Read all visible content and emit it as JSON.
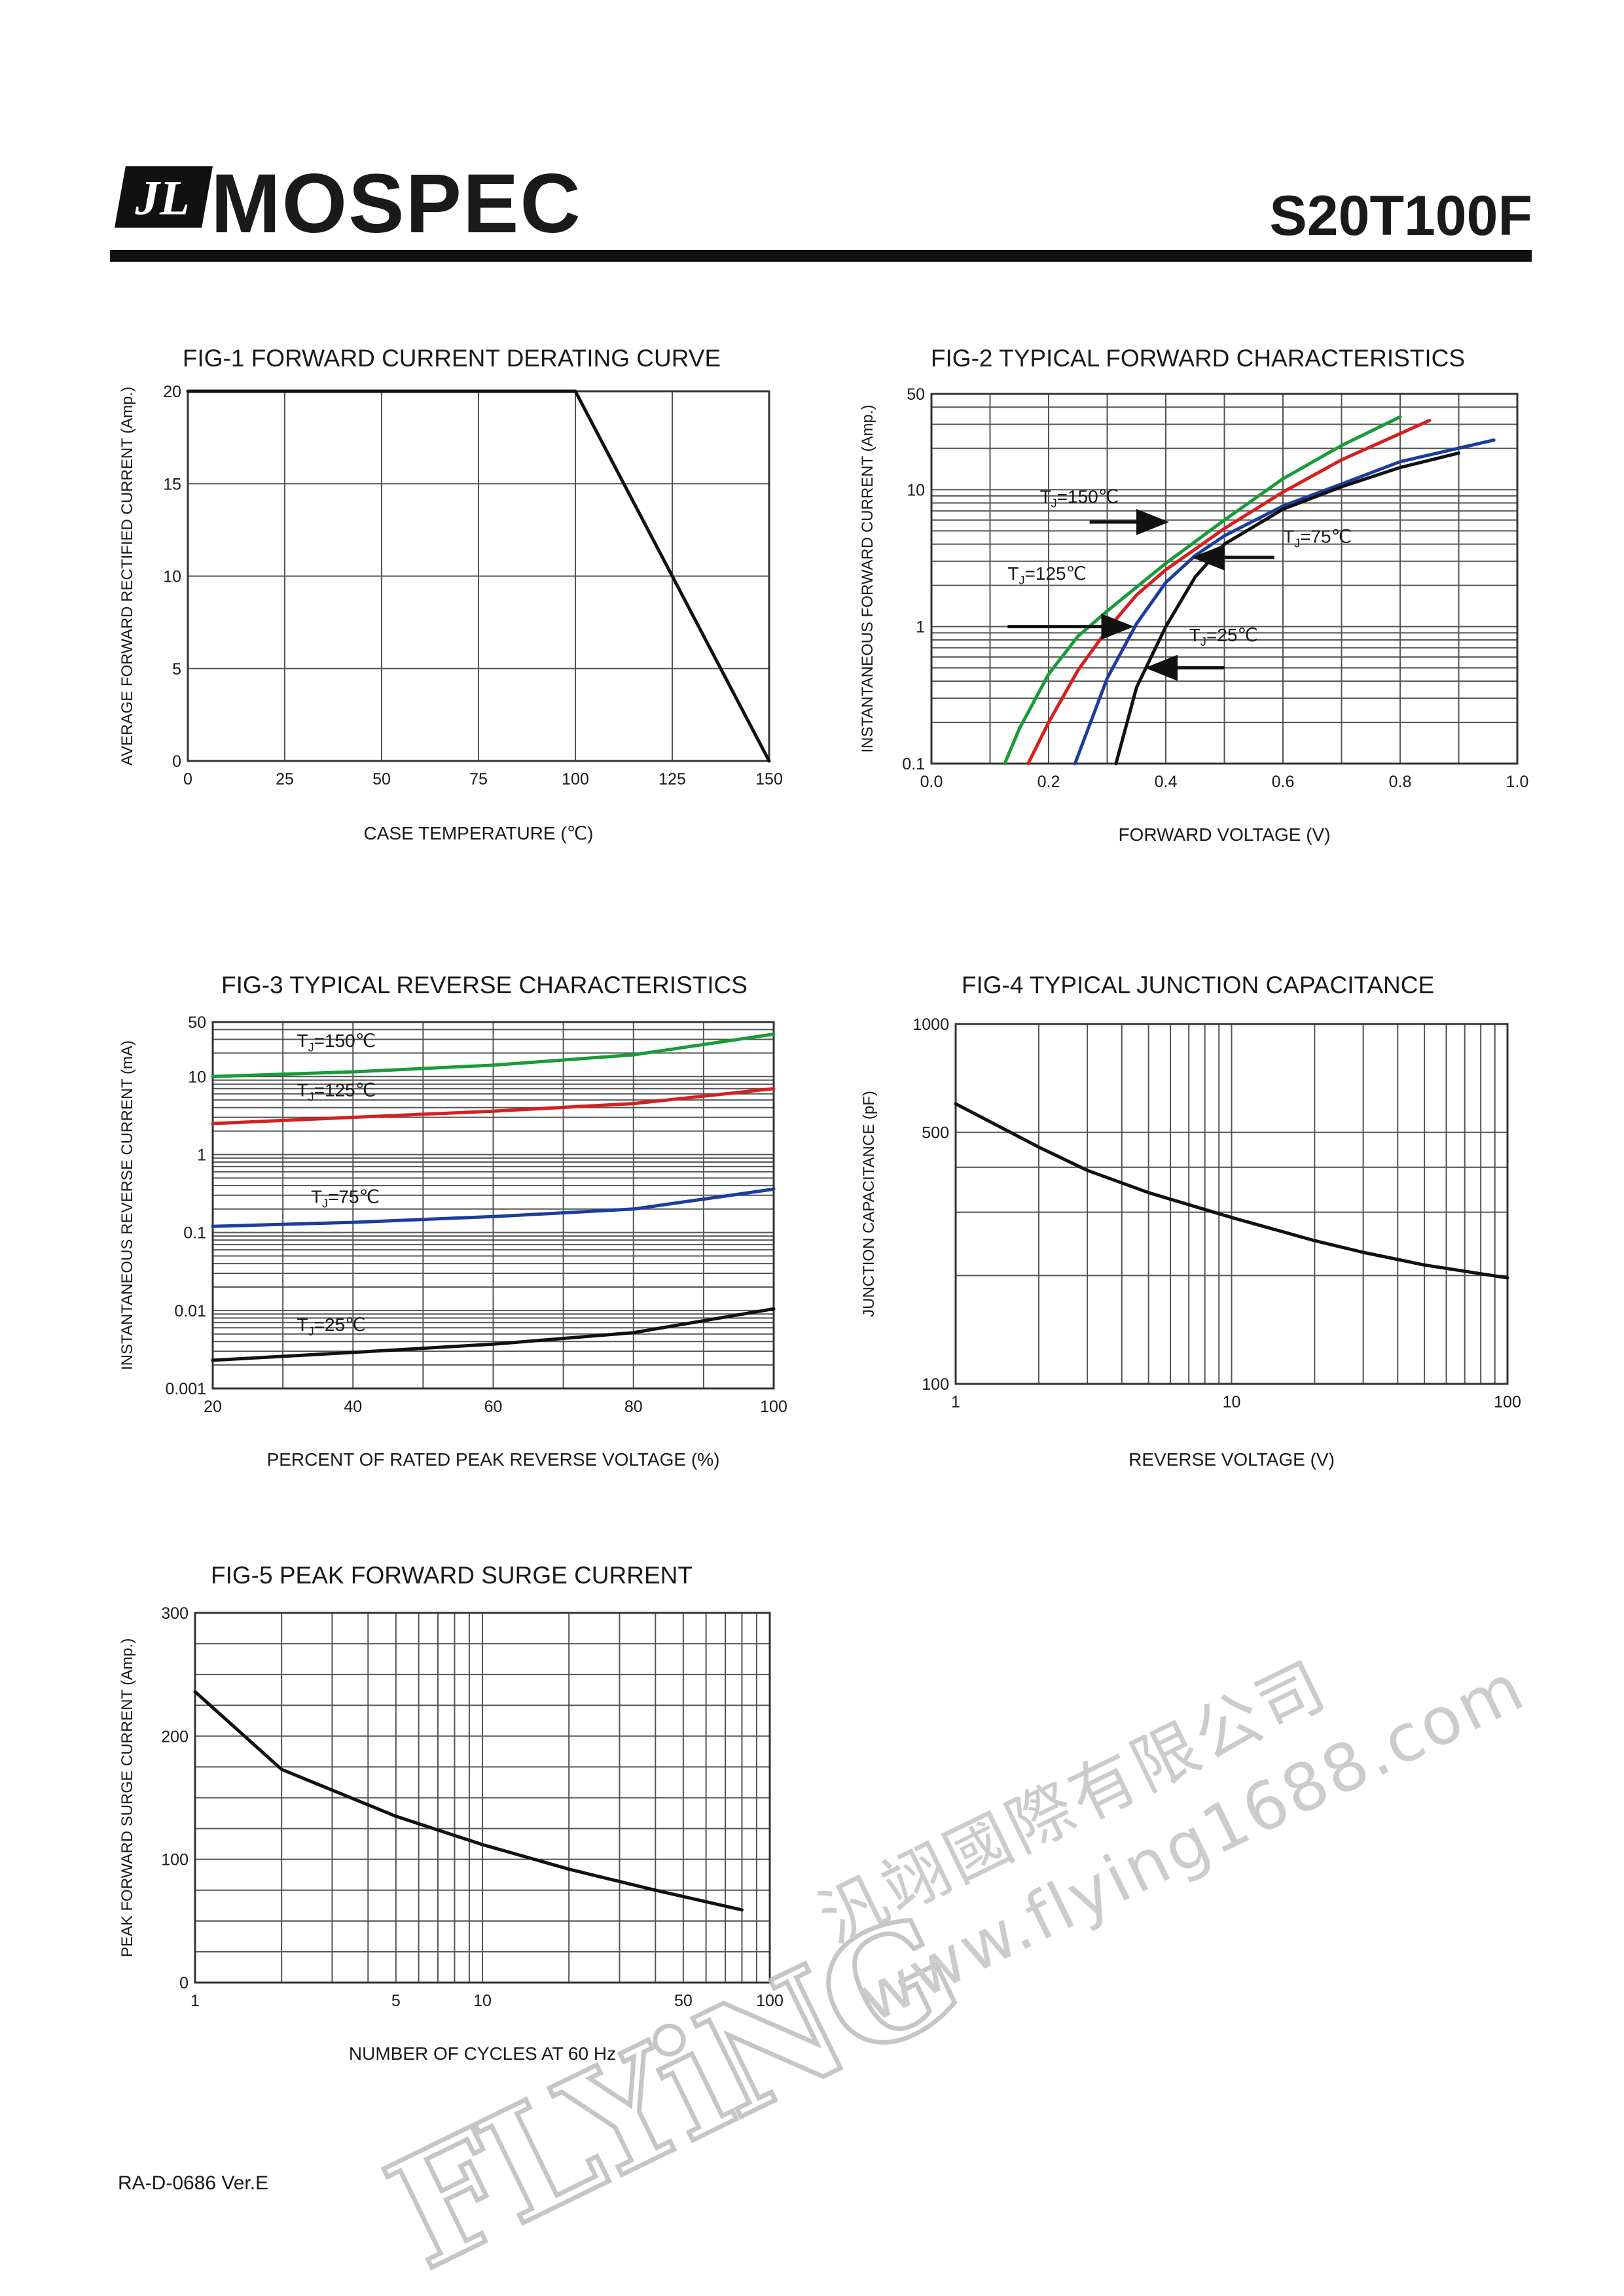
{
  "header": {
    "brand": "MOSPEC",
    "logo_mark": "JL",
    "part_number": "S20T100F"
  },
  "footer": {
    "doc_code": "RA-D-0686 Ver.E"
  },
  "watermark": {
    "brand": "FLYiNG",
    "chinese": "汎翊國際有限公司",
    "url": "www.flying1688.com",
    "color": "#bdbdbd",
    "accent": "#8cc63f"
  },
  "colors": {
    "green": "#1a9a3a",
    "red": "#d42020",
    "blue": "#1c3d9c",
    "black": "#111111",
    "grid": "#555555"
  },
  "chart_data": [
    {
      "id": "fig1",
      "type": "line",
      "title": "FIG-1 FORWARD CURRENT DERATING CURVE",
      "xlabel": "CASE TEMPERATURE (℃)",
      "ylabel": "AVERAGE FORWARD RECTIFIED CURRENT (Amp.)",
      "xscale": "linear",
      "yscale": "linear",
      "xlim": [
        0,
        150
      ],
      "ylim": [
        0,
        20
      ],
      "xticks": [
        0,
        25,
        50,
        75,
        100,
        125,
        150
      ],
      "xticklabels": [
        "0",
        "25",
        "50",
        "75",
        "100",
        "125",
        "150"
      ],
      "yticks": [
        0,
        5,
        10,
        15,
        20
      ],
      "yticklabels": [
        "0",
        "5",
        "10",
        "15",
        "20"
      ],
      "xgrid": [
        0,
        25,
        50,
        75,
        100,
        125,
        150
      ],
      "ygrid": [
        0,
        5,
        10,
        15,
        20
      ],
      "series": [
        {
          "color": "#111111",
          "x": [
            0,
            100,
            150
          ],
          "y": [
            20,
            20,
            0
          ]
        }
      ],
      "annotations": []
    },
    {
      "id": "fig2",
      "type": "line",
      "title": "FIG-2 TYPICAL FORWARD CHARACTERISTICS",
      "xlabel": "FORWARD VOLTAGE (V)",
      "ylabel": "INSTANTANEOUS FORWARD CURRENT (Amp.)",
      "xscale": "linear",
      "yscale": "log",
      "xlim": [
        0,
        1.0
      ],
      "ylim": [
        0.1,
        50
      ],
      "xticks": [
        0,
        0.2,
        0.4,
        0.6,
        0.8,
        1.0
      ],
      "xticklabels": [
        "0.0",
        "0.2",
        "0.4",
        "0.6",
        "0.8",
        "1.0"
      ],
      "yticks": [
        0.1,
        1,
        10,
        50
      ],
      "yticklabels": [
        "0.1",
        "1",
        "10",
        "50"
      ],
      "xgrid": [
        0,
        0.1,
        0.2,
        0.3,
        0.4,
        0.5,
        0.6,
        0.7,
        0.8,
        0.9,
        1.0
      ],
      "ygrid": [
        0.1,
        0.2,
        0.3,
        0.4,
        0.5,
        0.6,
        0.7,
        0.8,
        0.9,
        1,
        2,
        3,
        4,
        5,
        6,
        7,
        8,
        9,
        10,
        20,
        30,
        40,
        50
      ],
      "series": [
        {
          "name": "TJ=150℃",
          "color": "#1a9a3a",
          "x": [
            0.125,
            0.15,
            0.2,
            0.25,
            0.3,
            0.4,
            0.5,
            0.6,
            0.7,
            0.8
          ],
          "y": [
            0.1,
            0.18,
            0.45,
            0.85,
            1.3,
            2.9,
            6.0,
            12.0,
            21.0,
            34.0
          ]
        },
        {
          "name": "TJ=125℃",
          "color": "#d42020",
          "x": [
            0.165,
            0.2,
            0.25,
            0.3,
            0.35,
            0.4,
            0.5,
            0.6,
            0.7,
            0.85
          ],
          "y": [
            0.1,
            0.2,
            0.48,
            0.95,
            1.7,
            2.6,
            5.2,
            9.6,
            16.5,
            32.0
          ]
        },
        {
          "name": "TJ=75℃",
          "color": "#1c3d9c",
          "x": [
            0.245,
            0.3,
            0.35,
            0.4,
            0.45,
            0.5,
            0.6,
            0.7,
            0.8,
            0.96
          ],
          "y": [
            0.1,
            0.42,
            1.05,
            2.1,
            3.3,
            4.6,
            7.6,
            11.0,
            16.0,
            23.0
          ]
        },
        {
          "name": "TJ=25℃",
          "color": "#111111",
          "x": [
            0.315,
            0.35,
            0.4,
            0.45,
            0.5,
            0.6,
            0.7,
            0.8,
            0.9
          ],
          "y": [
            0.1,
            0.36,
            1.0,
            2.3,
            4.0,
            7.2,
            10.5,
            14.5,
            18.5
          ]
        }
      ],
      "annotations": [
        {
          "label": "TJ=150℃",
          "tx": 0.185,
          "ty": 8.0,
          "ax1": 0.27,
          "ay1": 5.8,
          "ax2": 0.4,
          "ay2": 5.8
        },
        {
          "label": "TJ=125℃",
          "tx": 0.13,
          "ty": 2.2,
          "ax1": 0.13,
          "ay1": 1.0,
          "ax2": 0.34,
          "ay2": 1.0
        },
        {
          "label": "TJ=75℃",
          "tx": 0.6,
          "ty": 4.1,
          "ax1": 0.585,
          "ay1": 3.2,
          "ax2": 0.45,
          "ay2": 3.2
        },
        {
          "label": "TJ=25℃",
          "tx": 0.44,
          "ty": 0.78,
          "ax1": 0.5,
          "ay1": 0.5,
          "ax2": 0.37,
          "ay2": 0.5
        }
      ]
    },
    {
      "id": "fig3",
      "type": "line",
      "title": "FIG-3 TYPICAL REVERSE CHARACTERISTICS",
      "xlabel": "PERCENT OF RATED PEAK REVERSE VOLTAGE (%)",
      "ylabel": "INSTANTANEOUS REVERSE CURRENT (mA)",
      "xscale": "linear",
      "yscale": "log",
      "xlim": [
        20,
        100
      ],
      "ylim": [
        0.001,
        50
      ],
      "xticks": [
        20,
        40,
        60,
        80,
        100
      ],
      "xticklabels": [
        "20",
        "40",
        "60",
        "80",
        "100"
      ],
      "yticks": [
        0.001,
        0.01,
        0.1,
        1,
        10,
        50
      ],
      "yticklabels": [
        "0.001",
        "0.01",
        "0.1",
        "1",
        "10",
        "50"
      ],
      "xgrid": [
        20,
        30,
        40,
        50,
        60,
        70,
        80,
        90,
        100
      ],
      "ygrid": [
        0.001,
        0.002,
        0.003,
        0.004,
        0.005,
        0.006,
        0.007,
        0.008,
        0.009,
        0.01,
        0.02,
        0.03,
        0.04,
        0.05,
        0.06,
        0.07,
        0.08,
        0.09,
        0.1,
        0.2,
        0.3,
        0.4,
        0.5,
        0.6,
        0.7,
        0.8,
        0.9,
        1,
        2,
        3,
        4,
        5,
        6,
        7,
        8,
        9,
        10,
        20,
        30,
        40,
        50
      ],
      "series": [
        {
          "name": "TJ=150℃",
          "color": "#1a9a3a",
          "x": [
            20,
            40,
            60,
            80,
            100
          ],
          "y": [
            10,
            11.5,
            14,
            19,
            35
          ]
        },
        {
          "name": "TJ=125℃",
          "color": "#d42020",
          "x": [
            20,
            40,
            60,
            80,
            100
          ],
          "y": [
            2.5,
            3.0,
            3.6,
            4.5,
            7.0
          ]
        },
        {
          "name": "TJ=75℃",
          "color": "#1c3d9c",
          "x": [
            20,
            40,
            60,
            80,
            100
          ],
          "y": [
            0.12,
            0.135,
            0.16,
            0.2,
            0.36
          ]
        },
        {
          "name": "TJ=25℃",
          "color": "#111111",
          "x": [
            20,
            40,
            60,
            80,
            100
          ],
          "y": [
            0.0023,
            0.0029,
            0.0037,
            0.0052,
            0.0105
          ]
        }
      ],
      "annotations": [
        {
          "label": "TJ=150℃",
          "tx": 32,
          "ty": 24
        },
        {
          "label": "TJ=125℃",
          "tx": 32,
          "ty": 5.6
        },
        {
          "label": "TJ=75℃",
          "tx": 34,
          "ty": 0.24
        },
        {
          "label": "TJ=25℃",
          "tx": 32,
          "ty": 0.0055
        }
      ]
    },
    {
      "id": "fig4",
      "type": "line",
      "title": "FIG-4 TYPICAL JUNCTION CAPACITANCE",
      "xlabel": "REVERSE VOLTAGE (V)",
      "ylabel": "JUNCTION CAPACITANCE (pF)",
      "xscale": "log",
      "yscale": "log",
      "xlim": [
        1,
        100
      ],
      "ylim": [
        100,
        1000
      ],
      "xticks": [
        1,
        10,
        100
      ],
      "xticklabels": [
        "1",
        "10",
        "100"
      ],
      "yticks": [
        100,
        500,
        1000
      ],
      "yticklabels": [
        "100",
        "500",
        "1000"
      ],
      "xgrid": [
        1,
        2,
        3,
        4,
        5,
        6,
        7,
        8,
        9,
        10,
        20,
        30,
        40,
        50,
        60,
        70,
        80,
        90,
        100
      ],
      "ygrid": [
        100,
        200,
        300,
        400,
        500,
        1000
      ],
      "series": [
        {
          "color": "#111111",
          "x": [
            1,
            2,
            3,
            5,
            10,
            20,
            30,
            50,
            100
          ],
          "y": [
            600,
            455,
            392,
            340,
            290,
            250,
            232,
            214,
            197
          ]
        }
      ],
      "annotations": []
    },
    {
      "id": "fig5",
      "type": "line",
      "title": "FIG-5 PEAK FORWARD SURGE CURRENT",
      "xlabel": "NUMBER OF CYCLES AT 60 Hz",
      "ylabel": "PEAK FORWARD SURGE   CURRENT (Amp.)",
      "xscale": "log",
      "yscale": "linear",
      "xlim": [
        1,
        100
      ],
      "ylim": [
        0,
        300
      ],
      "xticks": [
        1,
        5,
        10,
        50,
        100
      ],
      "xticklabels": [
        "1",
        "5",
        "10",
        "50",
        "100"
      ],
      "yticks": [
        0,
        100,
        200,
        300
      ],
      "yticklabels": [
        "0",
        "100",
        "200",
        "300"
      ],
      "xgrid": [
        1,
        2,
        3,
        4,
        5,
        6,
        7,
        8,
        9,
        10,
        20,
        30,
        40,
        50,
        60,
        70,
        80,
        90,
        100
      ],
      "ygrid": [
        0,
        25,
        50,
        75,
        100,
        125,
        150,
        175,
        200,
        225,
        250,
        275,
        300
      ],
      "series": [
        {
          "color": "#111111",
          "x": [
            1,
            2,
            5,
            10,
            20,
            40,
            80
          ],
          "y": [
            236,
            173,
            135,
            112,
            92,
            75,
            59
          ]
        }
      ],
      "annotations": []
    }
  ]
}
